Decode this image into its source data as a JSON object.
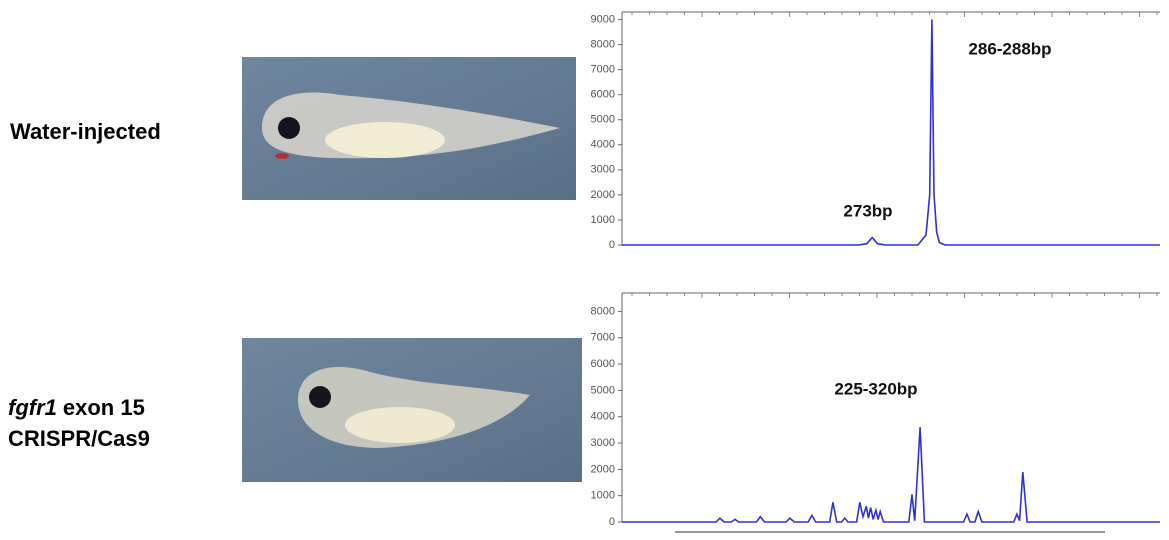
{
  "row_labels": [
    [
      "Water-injected"
    ],
    [
      "fgfr1",
      "exon 15",
      "CRISPR/Cas9"
    ]
  ],
  "chart_data": [
    {
      "type": "line",
      "annotations": [
        "273bp",
        "286-288bp"
      ],
      "x": [
        0,
        44,
        45.5,
        46.5,
        47.5,
        49,
        55,
        56.5,
        57.2,
        57.6,
        58,
        58.5,
        59,
        60,
        100
      ],
      "series": [
        {
          "color": "#3030d8",
          "values": [
            0,
            0,
            50,
            300,
            50,
            0,
            0,
            400,
            2000,
            9000,
            2000,
            500,
            100,
            0,
            0
          ]
        }
      ],
      "xlim": [
        0,
        100
      ],
      "ylim": [
        0,
        9300
      ],
      "yticks": [
        0,
        1000,
        2000,
        3000,
        4000,
        5000,
        6000,
        7000,
        8000,
        9000
      ]
    },
    {
      "type": "line",
      "annotations": [
        "225-320bp"
      ],
      "x": [
        0,
        17.5,
        18.2,
        19,
        20.3,
        21,
        21.7,
        25,
        25.7,
        26.5,
        30.5,
        31.2,
        32,
        34.6,
        35.3,
        36,
        38.6,
        39.2,
        39.9,
        40.8,
        41.4,
        42,
        43.6,
        44.2,
        44.8,
        45.4,
        45.8,
        46.2,
        46.7,
        47.2,
        47.6,
        48,
        48.6,
        53.3,
        53.9,
        54.4,
        55.4,
        56.2,
        63.5,
        64.1,
        64.7,
        65.6,
        66.2,
        66.9,
        72.8,
        73.4,
        73.9,
        74.5,
        75.3,
        100
      ],
      "series": [
        {
          "color": "#3030d8",
          "values": [
            0,
            0,
            150,
            0,
            0,
            100,
            0,
            0,
            200,
            0,
            0,
            150,
            0,
            0,
            250,
            0,
            0,
            750,
            0,
            0,
            150,
            0,
            0,
            750,
            200,
            600,
            150,
            550,
            100,
            450,
            100,
            400,
            0,
            0,
            1050,
            50,
            3600,
            0,
            0,
            300,
            0,
            0,
            400,
            0,
            0,
            300,
            50,
            1900,
            0,
            0
          ]
        }
      ],
      "xlim": [
        0,
        100
      ],
      "ylim": [
        0,
        8700
      ],
      "yticks": [
        0,
        1000,
        2000,
        3000,
        4000,
        5000,
        6000,
        7000,
        8000
      ]
    }
  ]
}
